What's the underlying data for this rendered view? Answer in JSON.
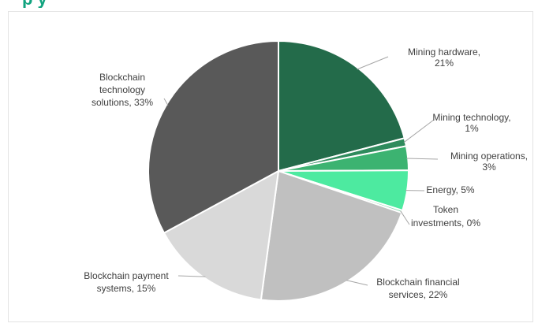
{
  "header": {
    "visible_fragment": "p        y"
  },
  "chart_data": {
    "type": "pie",
    "slices": [
      {
        "label": "Mining hardware",
        "value": 21,
        "value_label": "21%",
        "color": "#236b4a"
      },
      {
        "label": "Mining technology",
        "value": 1,
        "value_label": "1%",
        "color": "#2e8b5c"
      },
      {
        "label": "Mining operations",
        "value": 3,
        "value_label": "3%",
        "color": "#3cb371"
      },
      {
        "label": "Energy",
        "value": 5,
        "value_label": "5%",
        "color": "#4deaa0"
      },
      {
        "label": "Token investments",
        "value": 0.3,
        "value_label": "0%",
        "color": "#8fd4b0"
      },
      {
        "label": "Blockchain financial services",
        "value": 22,
        "value_label": "22%",
        "color": "#c0c0c0"
      },
      {
        "label": "Blockchain payment systems",
        "value": 15,
        "value_label": "15%",
        "color": "#d9d9d9"
      },
      {
        "label": "Blockchain technology solutions",
        "value": 33,
        "value_label": "33%",
        "color": "#595959"
      }
    ]
  }
}
